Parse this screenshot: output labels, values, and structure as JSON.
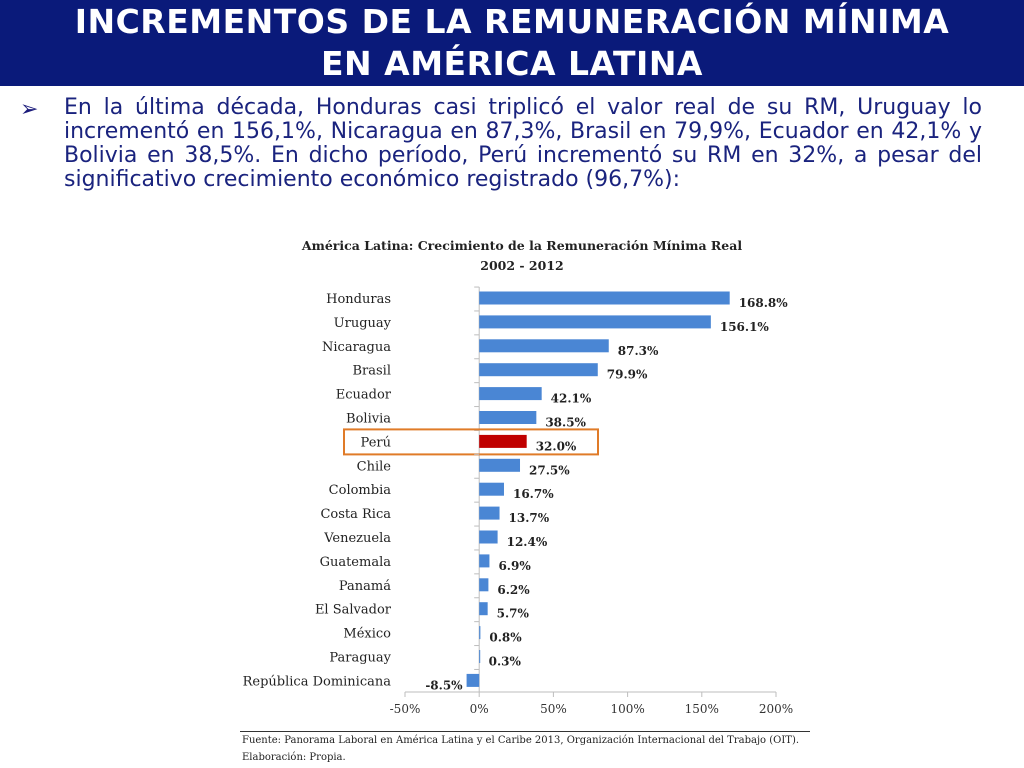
{
  "slide": {
    "title_line1": "INCREMENTOS DE LA REMUNERACIÓN MÍNIMA",
    "title_line2": "EN AMÉRICA LATINA",
    "bullet_marker": "➢",
    "bullet_text": "En la última década, Honduras casi triplicó el valor real de su RM, Uruguay lo incrementó en 156,1%, Nicaragua en 87,3%,  Brasil en 79,9%, Ecuador en 42,1% y Bolivia en 38,5%. En dicho período, Perú incrementó su RM en 32%, a pesar del significativo crecimiento económico registrado (96,7%):",
    "source": "Fuente: Panorama Laboral  en América Latina y el Caribe 2013, Organización Internacional del Trabajo (OIT).",
    "elaboration": "Elaboración: Propia."
  },
  "chart_data": {
    "type": "bar",
    "orientation": "horizontal",
    "title": "América Latina: Crecimiento de la Remuneración Mínima Real",
    "subtitle": "2002 - 2012",
    "categories": [
      "Honduras",
      "Uruguay",
      "Nicaragua",
      "Brasil",
      "Ecuador",
      "Bolivia",
      "Perú",
      "Chile",
      "Colombia",
      "Costa Rica",
      "Venezuela",
      "Guatemala",
      "Panamá",
      "El Salvador",
      "México",
      "Paraguay",
      "República Dominicana"
    ],
    "values": [
      168.8,
      156.1,
      87.3,
      79.9,
      42.1,
      38.5,
      32.0,
      27.5,
      16.7,
      13.7,
      12.4,
      6.9,
      6.2,
      5.7,
      0.8,
      0.3,
      -8.5
    ],
    "data_labels": [
      "168.8%",
      "156.1%",
      "87.3%",
      "79.9%",
      "42.1%",
      "38.5%",
      "32.0%",
      "27.5%",
      "16.7%",
      "13.7%",
      "12.4%",
      "6.9%",
      "6.2%",
      "5.7%",
      "0.8%",
      "0.3%",
      "-8.5%"
    ],
    "x_ticks": [
      -50,
      0,
      50,
      100,
      150,
      200
    ],
    "x_tick_labels": [
      "-50%",
      "0%",
      "50%",
      "100%",
      "150%",
      "200%"
    ],
    "xlim": [
      -50,
      200
    ],
    "highlight_category": "Perú",
    "bar_color": "#4a86d4",
    "highlight_color": "#c00000",
    "highlight_box_color": "#e07b28",
    "grid": false,
    "legend": "none"
  }
}
